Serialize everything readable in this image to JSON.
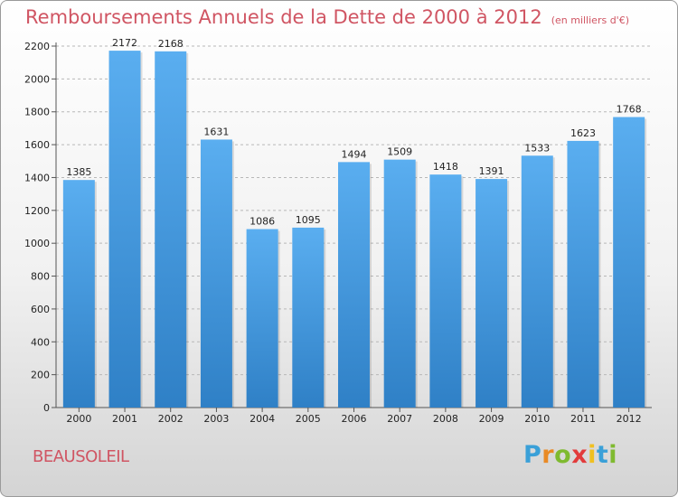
{
  "header": {
    "title": "Remboursements Annuels de la Dette de 2000 à 2012",
    "subtitle": "(en milliers d'€)"
  },
  "footer": {
    "city": "BEAUSOLEIL",
    "logo_letters": [
      "P",
      "r",
      "o",
      "x",
      "i",
      "t",
      "i"
    ],
    "logo_colors": [
      "#3aa0d8",
      "#e98a25",
      "#7fba30",
      "#e23b3b",
      "#f0c020",
      "#3aa0d8",
      "#7fba30"
    ]
  },
  "colors": {
    "title": "#d05563",
    "bar_light": "#5aaef0",
    "bar_dark": "#2f80c6",
    "gridline": "#b8b8b8",
    "axis": "#555555"
  },
  "chart_data": {
    "type": "bar",
    "title": "Remboursements Annuels de la Dette de 2000 à 2012",
    "subtitle": "(en milliers d'€)",
    "xlabel": "",
    "ylabel": "",
    "categories": [
      "2000",
      "2001",
      "2002",
      "2003",
      "2004",
      "2005",
      "2006",
      "2007",
      "2008",
      "2009",
      "2010",
      "2011",
      "2012"
    ],
    "values": [
      1385,
      2172,
      2168,
      1631,
      1086,
      1095,
      1494,
      1509,
      1418,
      1391,
      1533,
      1623,
      1768
    ],
    "ylim": [
      0,
      2200
    ],
    "yticks": [
      0,
      200,
      400,
      600,
      800,
      1000,
      1200,
      1400,
      1600,
      1800,
      2000,
      2200
    ],
    "grid": true,
    "grid_style": "dashed",
    "legend": "none"
  }
}
